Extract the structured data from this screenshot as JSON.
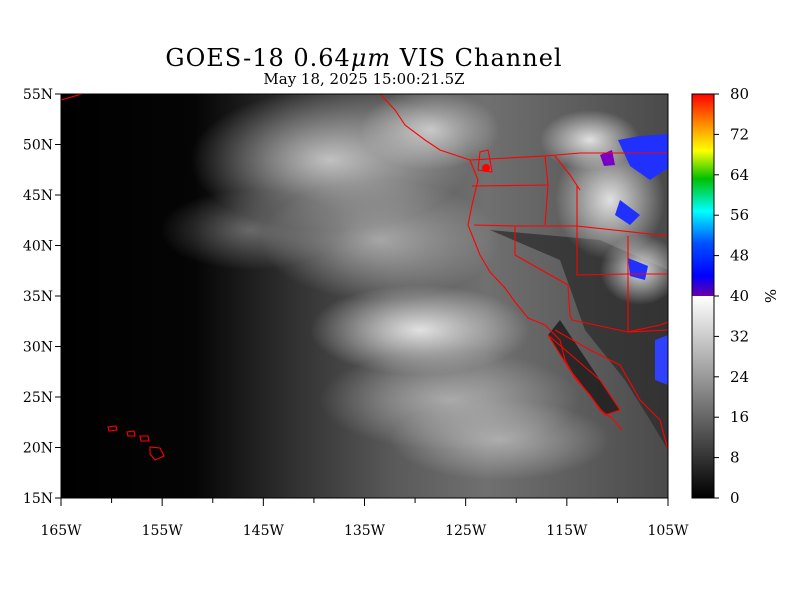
{
  "title_text": "GOES-18  0.64",
  "title_unit": "μm",
  "title_rest": " VIS Channel",
  "subtitle": "May 18,  2025 15:00:21.5Z",
  "lat_labels": [
    "55N",
    "50N",
    "45N",
    "40N",
    "35N",
    "30N",
    "25N",
    "20N",
    "15N"
  ],
  "lat_values": [
    55,
    50,
    45,
    40,
    35,
    30,
    25,
    20,
    15
  ],
  "lon_labels": [
    "165W",
    "155W",
    "145W",
    "135W",
    "125W",
    "115W",
    "105W"
  ],
  "lon_values": [
    -165,
    -155,
    -145,
    -135,
    -125,
    -115,
    -105
  ],
  "lon_range": [
    -165,
    -105
  ],
  "lat_range": [
    15,
    55
  ],
  "colorbar": {
    "labels": [
      "80",
      "72",
      "64",
      "56",
      "48",
      "40",
      "32",
      "24",
      "16",
      "8",
      "0"
    ],
    "values": [
      80,
      72,
      64,
      56,
      48,
      40,
      32,
      24,
      16,
      8,
      0
    ],
    "range": [
      0,
      80
    ],
    "unit": "%"
  },
  "colors": {
    "boundary": "#ff0000",
    "colorbar_high": [
      "#ff0000",
      "#ff8c00",
      "#ffff00",
      "#00c000",
      "#00ffff",
      "#0050ff",
      "#0000ff",
      "#6a00a8"
    ]
  }
}
